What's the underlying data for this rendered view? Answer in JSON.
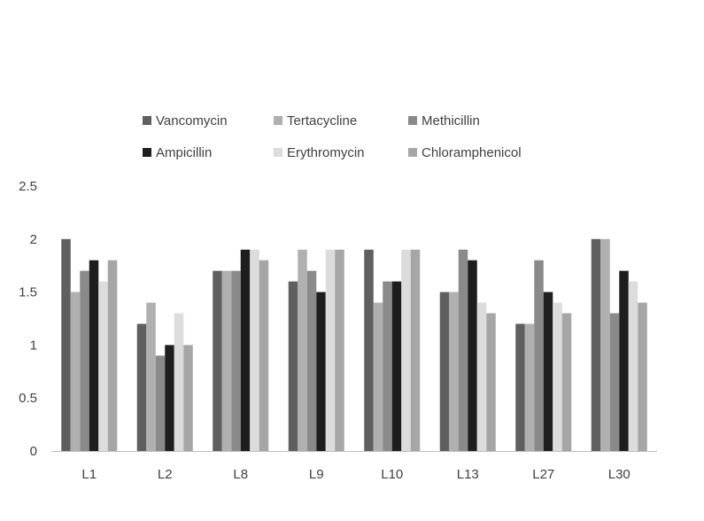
{
  "chart_data": {
    "type": "bar",
    "title": "",
    "xlabel": "",
    "ylabel": "",
    "ylim": [
      0,
      2.5
    ],
    "yticks": [
      "0",
      "0.5",
      "1",
      "1.5",
      "2",
      "2.5"
    ],
    "categories": [
      "L1",
      "L2",
      "L8",
      "L9",
      "L10",
      "L13",
      "L27",
      "L30"
    ],
    "legend_position": "top",
    "grid": false,
    "series": [
      {
        "name": "Vancomycin",
        "color": "#5f5f5f",
        "values": [
          2.0,
          1.2,
          1.7,
          1.6,
          1.9,
          1.5,
          1.2,
          2.0
        ]
      },
      {
        "name": "Tertacycline",
        "color": "#b0b0b0",
        "values": [
          1.5,
          1.4,
          1.7,
          1.9,
          1.4,
          1.5,
          1.2,
          2.0
        ]
      },
      {
        "name": "Methicillin",
        "color": "#8a8a8a",
        "values": [
          1.7,
          0.9,
          1.7,
          1.7,
          1.6,
          1.9,
          1.8,
          1.3
        ]
      },
      {
        "name": "Ampicillin",
        "color": "#1e1e1e",
        "values": [
          1.8,
          1.0,
          1.9,
          1.5,
          1.6,
          1.8,
          1.5,
          1.7
        ]
      },
      {
        "name": "Erythromycin",
        "color": "#dcdcdc",
        "values": [
          1.6,
          1.3,
          1.9,
          1.9,
          1.9,
          1.4,
          1.4,
          1.6
        ]
      },
      {
        "name": "Chloramphenicol",
        "color": "#a6a6a6",
        "values": [
          1.8,
          1.0,
          1.8,
          1.9,
          1.9,
          1.3,
          1.3,
          1.4
        ]
      }
    ]
  }
}
